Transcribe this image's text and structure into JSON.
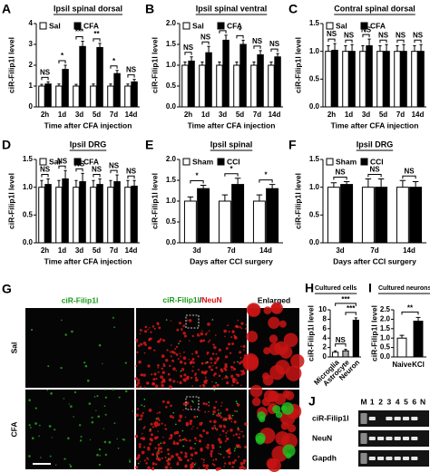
{
  "chart_data": [
    {
      "type": "bar",
      "panel": "A",
      "title": "Ipsil spinal dorsal",
      "ylabel": "ciR-Filip1l level",
      "xlabel": "Time after CFA injection",
      "categories": [
        "2h",
        "1d",
        "3d",
        "5d",
        "7d",
        "14d"
      ],
      "series": [
        {
          "name": "Sal",
          "color": "#ffffff",
          "values": [
            1,
            1,
            1,
            1,
            1,
            1
          ],
          "errors": [
            0.08,
            0.1,
            0.08,
            0.1,
            0.1,
            0.1
          ]
        },
        {
          "name": "CFA",
          "color": "#000000",
          "values": [
            1.1,
            1.8,
            2.9,
            2.85,
            1.6,
            1.2
          ],
          "errors": [
            0.1,
            0.2,
            0.25,
            0.2,
            0.15,
            0.12
          ]
        }
      ],
      "significance": [
        "NS",
        "*",
        "***",
        "**",
        "*",
        "NS"
      ],
      "ylim": [
        0,
        4
      ],
      "yticks": [
        0,
        1,
        2,
        3,
        4
      ]
    },
    {
      "type": "bar",
      "panel": "B",
      "title": "Ipsil spinal ventral",
      "ylabel": "ciR-Filip1l level",
      "xlabel": "Time after CFA injection",
      "categories": [
        "2h",
        "1d",
        "3d",
        "5d",
        "7d",
        "14d"
      ],
      "series": [
        {
          "name": "Sal",
          "color": "#ffffff",
          "values": [
            1,
            1,
            1,
            1,
            1,
            1
          ],
          "errors": [
            0.08,
            0.08,
            0.08,
            0.08,
            0.08,
            0.08
          ]
        },
        {
          "name": "CFA",
          "color": "#000000",
          "values": [
            1.1,
            1.3,
            1.6,
            1.5,
            1.25,
            1.2
          ],
          "errors": [
            0.1,
            0.15,
            0.12,
            0.1,
            0.1,
            0.08
          ]
        }
      ],
      "significance": [
        "NS",
        "NS",
        "*",
        "*",
        "NS",
        "NS"
      ],
      "ylim": [
        0,
        2
      ],
      "yticks": [
        {
          "value": 0,
          "label": "0.0"
        },
        0.5,
        {
          "value": 1,
          "label": "1.0"
        },
        1.5,
        {
          "value": 2,
          "label": "2.0"
        }
      ]
    },
    {
      "type": "bar",
      "panel": "C",
      "title": "Contral spinal dorsal",
      "ylabel": "ciR-Filip1l level",
      "xlabel": "Time after CFA injection",
      "categories": [
        "2h",
        "1d",
        "3d",
        "5d",
        "7d",
        "14d"
      ],
      "series": [
        {
          "name": "Sal",
          "color": "#ffffff",
          "values": [
            1,
            1,
            1,
            1,
            1,
            1
          ],
          "errors": [
            0.1,
            0.1,
            0.1,
            0.1,
            0.1,
            0.1
          ]
        },
        {
          "name": "CFA",
          "color": "#000000",
          "values": [
            1.02,
            1,
            1.1,
            1,
            1,
            1
          ],
          "errors": [
            0.12,
            0.12,
            0.12,
            0.12,
            0.12,
            0.12
          ]
        }
      ],
      "significance": [
        "NS",
        "NS",
        "NS",
        "NS",
        "NS",
        "NS"
      ],
      "ylim": [
        0,
        1.5
      ],
      "yticks": [
        {
          "value": 0,
          "label": "0.0"
        },
        0.5,
        {
          "value": 1,
          "label": "1.0"
        },
        1.5
      ]
    },
    {
      "type": "bar",
      "panel": "D",
      "title": "Ipsil DRG",
      "ylabel": "ciR-Filip1l level",
      "xlabel": "Time after CFA injection",
      "categories": [
        "2h",
        "1d",
        "3d",
        "5d",
        "7d",
        "14d"
      ],
      "series": [
        {
          "name": "Sal",
          "color": "#ffffff",
          "values": [
            1,
            1,
            1,
            1,
            1,
            1
          ],
          "errors": [
            0.12,
            0.12,
            0.12,
            0.12,
            0.12,
            0.12
          ]
        },
        {
          "name": "CFA",
          "color": "#000000",
          "values": [
            1.05,
            1.15,
            1.1,
            1.05,
            1.1,
            1.02
          ],
          "errors": [
            0.1,
            0.15,
            0.15,
            0.1,
            0.12,
            0.1
          ]
        }
      ],
      "significance": [
        "NS",
        "NS",
        "NS",
        "NS",
        "NS",
        "NS"
      ],
      "ylim": [
        0,
        1.5
      ],
      "yticks": [
        {
          "value": 0,
          "label": "0.0"
        },
        0.5,
        {
          "value": 1,
          "label": "1.0"
        },
        1.5
      ]
    },
    {
      "type": "bar",
      "panel": "E",
      "title": "Ipsil spinal",
      "ylabel": "ciR-Filip1l level",
      "xlabel": "Days after CCI surgery",
      "categories": [
        "3d",
        "7d",
        "14d"
      ],
      "series": [
        {
          "name": "Sham",
          "color": "#ffffff",
          "values": [
            1,
            1,
            1
          ],
          "errors": [
            0.1,
            0.15,
            0.15
          ]
        },
        {
          "name": "CCI",
          "color": "#000000",
          "values": [
            1.3,
            1.4,
            1.3
          ],
          "errors": [
            0.08,
            0.15,
            0.1
          ]
        }
      ],
      "significance": [
        "*",
        "*",
        "*"
      ],
      "ylim": [
        0,
        2
      ],
      "yticks": [
        {
          "value": 0,
          "label": "0.0"
        },
        0.5,
        {
          "value": 1,
          "label": "1.0"
        },
        1.5,
        {
          "value": 2,
          "label": "2.0"
        }
      ]
    },
    {
      "type": "bar",
      "panel": "F",
      "title": "Ipsil DRG",
      "ylabel": "ciR-Filip1l level",
      "xlabel": "Days after CCI surgery",
      "categories": [
        "3d",
        "7d",
        "14d"
      ],
      "series": [
        {
          "name": "Sham",
          "color": "#ffffff",
          "values": [
            1,
            1,
            1
          ],
          "errors": [
            0.08,
            0.15,
            0.12
          ]
        },
        {
          "name": "CCI",
          "color": "#000000",
          "values": [
            1.05,
            1,
            1
          ],
          "errors": [
            0.05,
            0.15,
            0.1
          ]
        }
      ],
      "significance": [
        "NS",
        "NS",
        "NS"
      ],
      "ylim": [
        0,
        1.5
      ],
      "yticks": [
        {
          "value": 0,
          "label": "0.0"
        },
        0.5,
        {
          "value": 1,
          "label": "1.0"
        },
        1.5
      ]
    },
    {
      "type": "bar",
      "panel": "H",
      "title": "Cultured cells",
      "ylabel": "ciR-Filip1l level",
      "categories": [
        "Microglia",
        "Astrocyte",
        "Neuron"
      ],
      "values": [
        1,
        1.3,
        7.8
      ],
      "errors": [
        0.3,
        0.3,
        0.5
      ],
      "colors": [
        "#ffffff",
        "#aaaaaa",
        "#000000"
      ],
      "significance": [
        "NS",
        "***",
        "***"
      ],
      "ylim": [
        0,
        10
      ],
      "yticks": [
        0,
        2,
        4,
        6,
        8,
        10
      ]
    },
    {
      "type": "bar",
      "panel": "I",
      "title": "Cultured neurons",
      "ylabel": "ciR-Filip1l level",
      "categories": [
        "Naive",
        "KCl"
      ],
      "values": [
        1,
        1.9
      ],
      "errors": [
        0.15,
        0.2
      ],
      "colors": [
        "#ffffff",
        "#000000"
      ],
      "significance": [
        "**"
      ],
      "ylim": [
        0,
        2.5
      ],
      "yticks": [
        {
          "value": 0,
          "label": "0.0"
        },
        0.5,
        {
          "value": 1,
          "label": "1.0"
        },
        1.5,
        {
          "value": 2,
          "label": "2.0"
        },
        2.5
      ]
    }
  ],
  "panel_g": {
    "letter": "G",
    "col1": "ciR-Filip1l",
    "col2": {
      "a": "ciR-Filip1l",
      "sep": "/",
      "b": "NeuN"
    },
    "col3": "Enlarged",
    "rows": [
      "Sal",
      "CFA"
    ]
  },
  "panel_j": {
    "letter": "J",
    "lanes": [
      "M",
      "1",
      "2",
      "3",
      "4",
      "5",
      "6",
      "N"
    ],
    "rows": [
      "ciR-Filip1l",
      "NeuN",
      "Gapdh"
    ]
  }
}
